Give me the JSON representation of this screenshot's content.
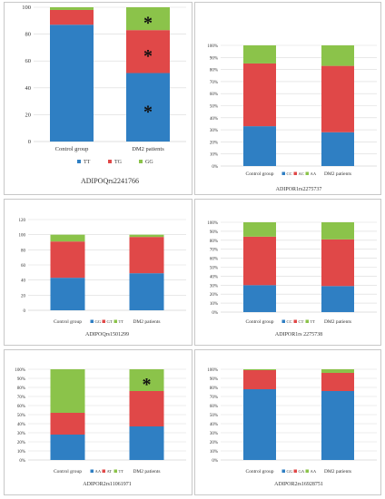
{
  "colors": {
    "blue": "#2f7fc3",
    "red": "#e04848",
    "green": "#8bc34a",
    "grid": "#d9d9d9",
    "axis": "#bfbfbf"
  },
  "chart_data": [
    {
      "type": "bar",
      "stacked": true,
      "categories": [
        "Control group",
        "DM2 patients"
      ],
      "series": [
        {
          "name": "TT",
          "values": [
            87,
            51
          ]
        },
        {
          "name": "TG",
          "values": [
            11,
            32
          ]
        },
        {
          "name": "GG",
          "values": [
            2,
            17
          ]
        }
      ],
      "ylim": [
        0,
        100
      ],
      "yticks": [
        "0",
        "20",
        "40",
        "60",
        "80",
        "100"
      ],
      "xlabel": "ADIPOQrs2241766",
      "legend": "bottom",
      "grid": true,
      "annotations": [
        {
          "category": "DM2 patients",
          "series": "TT",
          "text": "*"
        },
        {
          "category": "DM2 patients",
          "series": "TG",
          "text": "*"
        },
        {
          "category": "DM2 patients",
          "series": "GG",
          "text": "*"
        }
      ]
    },
    {
      "type": "bar",
      "stacked": true,
      "categories": [
        "Control group",
        "DM2 patients"
      ],
      "series": [
        {
          "name": "CC",
          "values": [
            33,
            28
          ]
        },
        {
          "name": "AC",
          "values": [
            52,
            55
          ]
        },
        {
          "name": "AA",
          "values": [
            15,
            17
          ]
        }
      ],
      "ylim": [
        0,
        100
      ],
      "yticks": [
        "0%",
        "10%",
        "20%",
        "30%",
        "40%",
        "50%",
        "60%",
        "70%",
        "80%",
        "90%",
        "100%"
      ],
      "xlabel": "ADIPOR1rs2275737",
      "legend": "inline",
      "grid": true,
      "annotations": []
    },
    {
      "type": "bar",
      "stacked": true,
      "categories": [
        "Control group",
        "DM2 patients"
      ],
      "series": [
        {
          "name": "GG",
          "values": [
            43,
            49
          ]
        },
        {
          "name": "GT",
          "values": [
            48,
            48
          ]
        },
        {
          "name": "TT",
          "values": [
            9,
            3
          ]
        }
      ],
      "ylim": [
        0,
        120
      ],
      "yticks": [
        "0",
        "20",
        "40",
        "60",
        "80",
        "100",
        "120"
      ],
      "xlabel": "ADIPOQrs1501299",
      "legend": "inline",
      "grid": true,
      "annotations": []
    },
    {
      "type": "bar",
      "stacked": true,
      "categories": [
        "Control group",
        "DM2 patients"
      ],
      "series": [
        {
          "name": "CC",
          "values": [
            30,
            29
          ]
        },
        {
          "name": "CT",
          "values": [
            54,
            52
          ]
        },
        {
          "name": "TT",
          "values": [
            16,
            19
          ]
        }
      ],
      "ylim": [
        0,
        100
      ],
      "yticks": [
        "0%",
        "10%",
        "20%",
        "30%",
        "40%",
        "50%",
        "60%",
        "70%",
        "80%",
        "90%",
        "100%"
      ],
      "xlabel": "ADIPOR1rs 2275738",
      "legend": "inline",
      "grid": true,
      "annotations": []
    },
    {
      "type": "bar",
      "stacked": true,
      "categories": [
        "Control group",
        "DM2 patients"
      ],
      "series": [
        {
          "name": "AA",
          "values": [
            28,
            37
          ]
        },
        {
          "name": "AT",
          "values": [
            24,
            39
          ]
        },
        {
          "name": "TT",
          "values": [
            48,
            24
          ]
        }
      ],
      "ylim": [
        0,
        100
      ],
      "yticks": [
        "0%",
        "10%",
        "20%",
        "30%",
        "40%",
        "50%",
        "60%",
        "70%",
        "80%",
        "90%",
        "100%"
      ],
      "xlabel": "ADIPOR2rs11061971",
      "legend": "inline",
      "grid": true,
      "annotations": [
        {
          "category": "DM2 patients",
          "series": "TT",
          "text": "*"
        }
      ]
    },
    {
      "type": "bar",
      "stacked": true,
      "categories": [
        "Control group",
        "DM2 patients"
      ],
      "series": [
        {
          "name": "GG",
          "values": [
            78,
            76
          ]
        },
        {
          "name": "GA",
          "values": [
            21,
            20
          ]
        },
        {
          "name": "AA",
          "values": [
            1,
            4
          ]
        }
      ],
      "ylim": [
        0,
        100
      ],
      "yticks": [
        "0%",
        "10%",
        "20%",
        "30%",
        "40%",
        "50%",
        "60%",
        "70%",
        "80%",
        "90%",
        "100%"
      ],
      "xlabel": "ADIPOR2rs16928751",
      "legend": "inline",
      "grid": true,
      "annotations": []
    }
  ]
}
